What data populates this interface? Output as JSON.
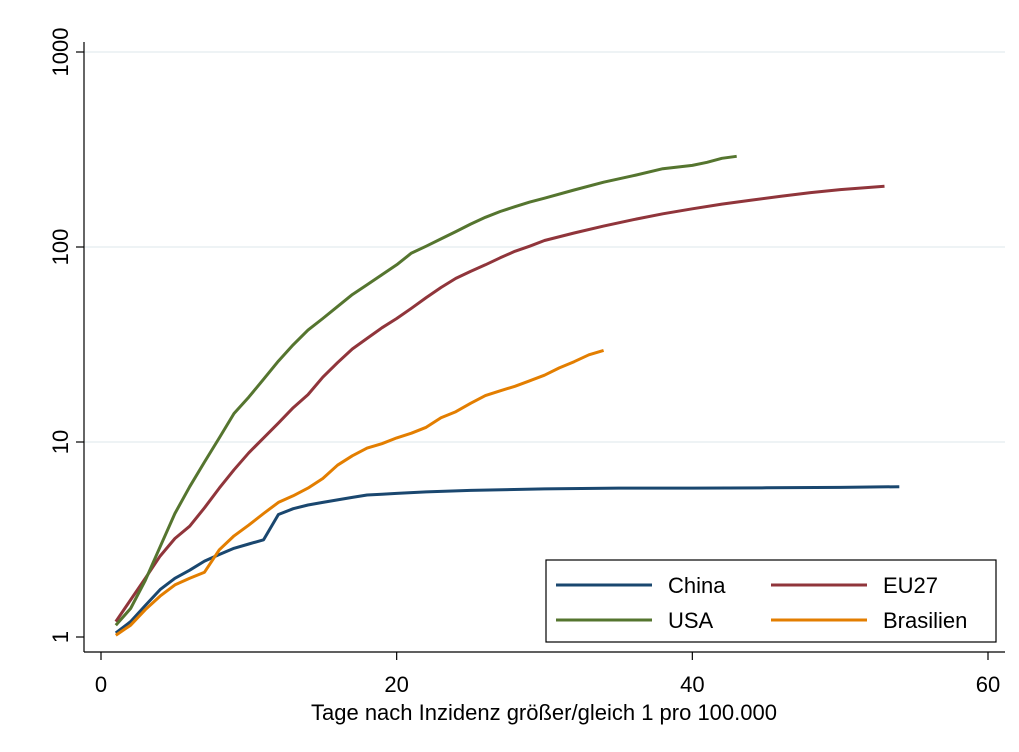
{
  "chart_data": {
    "type": "line",
    "title": "",
    "xlabel": "Tage nach Inzidenz größer/gleich 1 pro 100.000",
    "ylabel": "",
    "xlim": [
      -1,
      61
    ],
    "ylim": [
      0.95,
      1050
    ],
    "yscale": "log",
    "xticks": [
      0,
      20,
      40,
      60
    ],
    "yticks": [
      1,
      10,
      100,
      1000
    ],
    "xtick_labels": [
      "0",
      "20",
      "40",
      "60"
    ],
    "ytick_labels": [
      "1",
      "10",
      "100",
      "1000"
    ],
    "grid": "horizontal",
    "legend_position": "bottom-right",
    "legend_columns": 2,
    "series": [
      {
        "name": "China",
        "color": "#1a476f",
        "x": [
          1,
          2,
          3,
          4,
          5,
          6,
          7,
          8,
          9,
          10,
          11,
          12,
          13,
          14,
          15,
          16,
          17,
          18,
          19,
          20,
          22,
          25,
          30,
          35,
          40,
          45,
          50,
          54
        ],
        "y": [
          1.05,
          1.2,
          1.45,
          1.75,
          2.0,
          2.2,
          2.45,
          2.65,
          2.85,
          3.0,
          3.15,
          4.25,
          4.55,
          4.75,
          4.9,
          5.05,
          5.2,
          5.35,
          5.4,
          5.45,
          5.55,
          5.65,
          5.75,
          5.8,
          5.8,
          5.82,
          5.85,
          5.9
        ]
      },
      {
        "name": "EU27",
        "color": "#90353b",
        "x": [
          1,
          2,
          3,
          4,
          5,
          6,
          7,
          8,
          9,
          10,
          11,
          12,
          13,
          14,
          15,
          16,
          17,
          18,
          19,
          20,
          21,
          22,
          23,
          24,
          25,
          26,
          27,
          28,
          29,
          30,
          32,
          34,
          36,
          38,
          40,
          42,
          44,
          46,
          48,
          50,
          53
        ],
        "y": [
          1.2,
          1.55,
          2.0,
          2.6,
          3.2,
          3.7,
          4.6,
          5.8,
          7.2,
          8.8,
          10.5,
          12.5,
          15.0,
          17.5,
          21.5,
          25.5,
          30.0,
          34.0,
          38.5,
          43.0,
          48.5,
          55.0,
          62.0,
          69.0,
          75.0,
          81.0,
          88.0,
          95.0,
          101.0,
          108.0,
          118.0,
          128.0,
          138.0,
          148.0,
          157.0,
          166.0,
          174.0,
          182.0,
          190.0,
          197.0,
          205.0
        ]
      },
      {
        "name": "USA",
        "color": "#55752f",
        "x": [
          1,
          2,
          3,
          4,
          5,
          6,
          7,
          8,
          9,
          10,
          11,
          12,
          13,
          14,
          15,
          16,
          17,
          18,
          19,
          20,
          21,
          22,
          23,
          24,
          25,
          26,
          27,
          28,
          29,
          30,
          32,
          34,
          36,
          38,
          40,
          41,
          42,
          43
        ],
        "y": [
          1.15,
          1.4,
          1.95,
          2.9,
          4.3,
          5.9,
          7.9,
          10.5,
          14.0,
          17.0,
          21.0,
          26.0,
          31.5,
          37.5,
          43.0,
          49.5,
          57.0,
          64.0,
          72.0,
          81.0,
          93.0,
          101.0,
          110.0,
          120.0,
          131.0,
          142.0,
          152.0,
          161.0,
          170.0,
          178.0,
          196.0,
          215.0,
          232.0,
          252.0,
          262.0,
          272.0,
          285.0,
          292.0
        ]
      },
      {
        "name": "Brasilien",
        "color": "#e37e00",
        "x": [
          1,
          2,
          3,
          4,
          5,
          6,
          7,
          8,
          9,
          10,
          11,
          12,
          13,
          14,
          15,
          16,
          17,
          18,
          19,
          20,
          21,
          22,
          23,
          24,
          25,
          26,
          27,
          28,
          29,
          30,
          31,
          32,
          33,
          34
        ],
        "y": [
          1.02,
          1.15,
          1.38,
          1.62,
          1.85,
          2.0,
          2.15,
          2.8,
          3.3,
          3.75,
          4.3,
          4.9,
          5.3,
          5.8,
          6.5,
          7.6,
          8.5,
          9.3,
          9.8,
          10.5,
          11.1,
          11.9,
          13.3,
          14.3,
          15.8,
          17.3,
          18.3,
          19.3,
          20.6,
          22.0,
          24.0,
          25.8,
          28.0,
          29.5
        ]
      }
    ]
  }
}
